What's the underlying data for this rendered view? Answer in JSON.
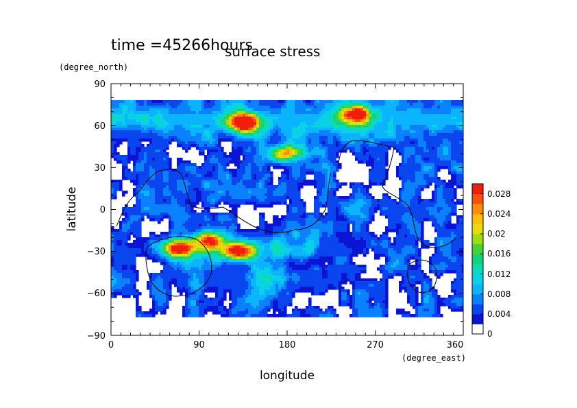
{
  "time_label": "time =45266hours",
  "chart_data": {
    "type": "heatmap",
    "title": "surface stress",
    "xlabel": "longitude",
    "ylabel": "latitude",
    "xunit": "(degree_east)",
    "yunit": "(degree_north)",
    "xlim": [
      0,
      360
    ],
    "ylim": [
      -90,
      90
    ],
    "x_ticks": [
      "0",
      "90",
      "180",
      "270",
      "360"
    ],
    "y_ticks": [
      "90",
      "60",
      "30",
      "0",
      "−30",
      "−60",
      "−90"
    ],
    "colorbar": {
      "min": 0,
      "max": 0.03,
      "tick_labels": [
        "0",
        "0.004",
        "0.008",
        "0.012",
        "0.016",
        "0.02",
        "0.024",
        "0.028"
      ],
      "colors": [
        "#ffffff",
        "#0a14d2",
        "#0a46f0",
        "#0a82ff",
        "#0ab4ff",
        "#0ad2e6",
        "#0adcb4",
        "#14d27d",
        "#46d23c",
        "#a0dc14",
        "#e6dc0a",
        "#ffbe0a",
        "#ff8c0a",
        "#ff500a",
        "#f01e0a"
      ]
    },
    "hotspots": [
      {
        "lon": 135,
        "lat": 62,
        "value": 0.03
      },
      {
        "lon": 250,
        "lat": 68,
        "value": 0.025
      },
      {
        "lon": 70,
        "lat": -28,
        "value": 0.03
      },
      {
        "lon": 130,
        "lat": -30,
        "value": 0.028
      },
      {
        "lon": 180,
        "lat": 40,
        "value": 0.022
      },
      {
        "lon": 100,
        "lat": -22,
        "value": 0.022
      }
    ]
  }
}
